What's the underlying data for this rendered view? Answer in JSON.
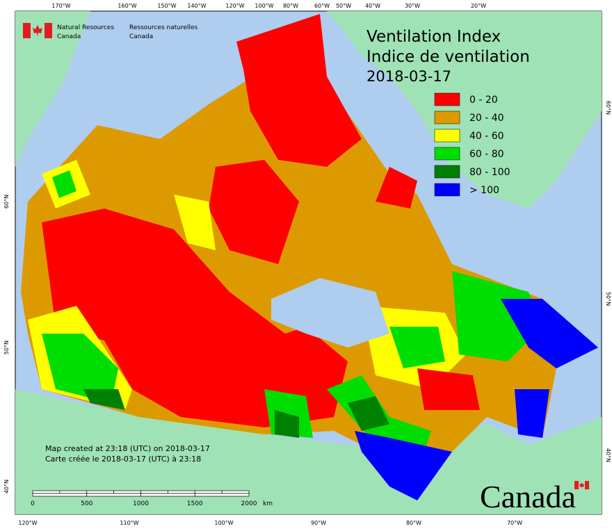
{
  "header": {
    "org_en": [
      "Natural Resources",
      "Canada"
    ],
    "org_fr": [
      "Ressources naturelles",
      "Canada"
    ]
  },
  "title": [
    "Ventilation Index",
    "Indice de ventilation",
    "2018-03-17"
  ],
  "legend": [
    {
      "label": "0 - 20",
      "color": "#ff0000"
    },
    {
      "label": "20 - 40",
      "color": "#dd9a00"
    },
    {
      "label": "40 - 60",
      "color": "#ffff00"
    },
    {
      "label": "60 - 80",
      "color": "#00dd00"
    },
    {
      "label": "80 - 100",
      "color": "#008000"
    },
    {
      "label": "> 100",
      "color": "#0000ff"
    }
  ],
  "top_labels": [
    "170°W",
    "160°W",
    "150°W",
    "140°W",
    "120°W",
    "100°W",
    "80°W",
    "60°W",
    "50°W",
    "40°W",
    "30°W",
    "20°W"
  ],
  "bottom_labels": [
    "120°W",
    "110°W",
    "100°W",
    "90°W",
    "80°W",
    "70°W"
  ],
  "left_labels": [
    "60°N",
    "50°N",
    "40°N"
  ],
  "right_labels": [
    "60°N",
    "50°N",
    "40°N"
  ],
  "credits": [
    "Map created at 23:18 (UTC) on 2018-03-17",
    "Carte créée le 2018-03-17 (UTC) à 23:18"
  ],
  "scale": {
    "ticks": [
      "0",
      "500",
      "1000",
      "1500",
      "2000"
    ],
    "unit": "km"
  },
  "wordmark": "Canada"
}
